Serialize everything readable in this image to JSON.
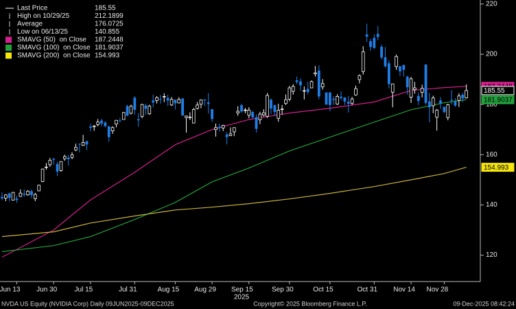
{
  "chart_data": {
    "type": "candlestick",
    "up_color": "#000000",
    "up_stroke": "#ffffff",
    "down_color": "#1f7fe8",
    "x": [
      "Jun 9",
      "Jun 10",
      "Jun 11",
      "Jun 12",
      "Jun 13",
      "Jun 16",
      "Jun 17",
      "Jun 18",
      "Jun 20",
      "Jun 23",
      "Jun 24",
      "Jun 25",
      "Jun 26",
      "Jun 27",
      "Jun 30",
      "Jul 1",
      "Jul 2",
      "Jul 3",
      "Jul 7",
      "Jul 8",
      "Jul 9",
      "Jul 10",
      "Jul 11",
      "Jul 14",
      "Jul 15",
      "Jul 16",
      "Jul 17",
      "Jul 18",
      "Jul 21",
      "Jul 22",
      "Jul 23",
      "Jul 24",
      "Jul 25",
      "Jul 28",
      "Jul 29",
      "Jul 30",
      "Jul 31",
      "Aug 1",
      "Aug 4",
      "Aug 5",
      "Aug 6",
      "Aug 7",
      "Aug 8",
      "Aug 11",
      "Aug 12",
      "Aug 13",
      "Aug 14",
      "Aug 15",
      "Aug 18",
      "Aug 19",
      "Aug 20",
      "Aug 21",
      "Aug 22",
      "Aug 25",
      "Aug 26",
      "Aug 27",
      "Aug 28",
      "Aug 29",
      "Sep 2",
      "Sep 3",
      "Sep 4",
      "Sep 5",
      "Sep 8",
      "Sep 9",
      "Sep 10",
      "Sep 11",
      "Sep 12",
      "Sep 15",
      "Sep 16",
      "Sep 17",
      "Sep 18",
      "Sep 19",
      "Sep 22",
      "Sep 23",
      "Sep 24",
      "Sep 25",
      "Sep 26",
      "Sep 29",
      "Sep 30",
      "Oct 1",
      "Oct 2",
      "Oct 3",
      "Oct 6",
      "Oct 7",
      "Oct 8",
      "Oct 9",
      "Oct 10",
      "Oct 13",
      "Oct 14",
      "Oct 15",
      "Oct 16",
      "Oct 17",
      "Oct 20",
      "Oct 21",
      "Oct 22",
      "Oct 23",
      "Oct 24",
      "Oct 27",
      "Oct 28",
      "Oct 29",
      "Oct 30",
      "Oct 31",
      "Nov 3",
      "Nov 4",
      "Nov 5",
      "Nov 6",
      "Nov 7",
      "Nov 10",
      "Nov 11",
      "Nov 12",
      "Nov 13",
      "Nov 14",
      "Nov 17",
      "Nov 18",
      "Nov 19",
      "Nov 20",
      "Nov 21",
      "Nov 24",
      "Nov 25",
      "Nov 26",
      "Nov 28",
      "Dec 1",
      "Dec 2",
      "Dec 3",
      "Dec 4",
      "Dec 5",
      "Dec 8"
    ],
    "ohlc": [
      [
        143.2,
        145.0,
        141.9,
        142.6
      ],
      [
        142.7,
        144.3,
        141.5,
        144.0
      ],
      [
        144.6,
        144.9,
        141.5,
        142.8
      ],
      [
        141.9,
        145.2,
        141.8,
        145.0
      ],
      [
        142.5,
        143.6,
        140.86,
        142.0
      ],
      [
        143.4,
        146.2,
        143.2,
        144.7
      ],
      [
        144.5,
        146.2,
        143.2,
        144.1
      ],
      [
        144.0,
        145.9,
        143.7,
        145.5
      ],
      [
        145.5,
        146.2,
        142.7,
        143.9
      ],
      [
        142.5,
        144.8,
        141.5,
        144.2
      ],
      [
        145.6,
        148.0,
        145.5,
        147.9
      ],
      [
        149.3,
        154.5,
        149.1,
        154.3
      ],
      [
        155.0,
        156.7,
        154.0,
        155.1
      ],
      [
        156.0,
        158.7,
        155.2,
        157.8
      ],
      [
        158.4,
        158.7,
        156.0,
        158.0
      ],
      [
        156.3,
        157.2,
        151.5,
        153.3
      ],
      [
        153.7,
        157.3,
        153.2,
        157.3
      ],
      [
        158.4,
        160.0,
        157.6,
        159.3
      ],
      [
        158.8,
        159.9,
        155.7,
        158.2
      ],
      [
        158.9,
        161.0,
        158.2,
        160.0
      ],
      [
        161.9,
        164.4,
        161.4,
        162.9
      ],
      [
        164.3,
        164.5,
        160.9,
        164.1
      ],
      [
        163.7,
        167.9,
        163.5,
        164.9
      ],
      [
        165.4,
        165.5,
        161.8,
        164.1
      ],
      [
        171.2,
        172.4,
        169.2,
        170.7
      ],
      [
        171.1,
        171.8,
        169.5,
        171.4
      ],
      [
        172.0,
        174.2,
        171.3,
        173.0
      ],
      [
        173.6,
        174.3,
        171.3,
        172.4
      ],
      [
        172.8,
        173.4,
        170.9,
        171.4
      ],
      [
        171.3,
        171.4,
        165.1,
        167.0
      ],
      [
        169.5,
        171.3,
        168.3,
        170.8
      ],
      [
        172.2,
        173.8,
        170.9,
        173.7
      ],
      [
        173.6,
        174.7,
        172.9,
        173.5
      ],
      [
        174.0,
        177.0,
        173.9,
        176.8
      ],
      [
        179.4,
        179.9,
        175.4,
        175.5
      ],
      [
        176.5,
        179.9,
        176.0,
        179.3
      ],
      [
        182.7,
        183.3,
        175.9,
        177.9
      ],
      [
        174.1,
        176.5,
        171.2,
        173.7
      ],
      [
        175.2,
        180.3,
        174.5,
        180.0
      ],
      [
        179.6,
        180.3,
        175.9,
        178.3
      ],
      [
        176.3,
        179.9,
        175.9,
        179.4
      ],
      [
        181.6,
        183.9,
        178.8,
        180.8
      ],
      [
        181.6,
        183.3,
        180.4,
        182.7
      ],
      [
        182.2,
        183.8,
        180.3,
        182.1
      ],
      [
        183.1,
        184.5,
        180.9,
        183.2
      ],
      [
        182.6,
        183.9,
        179.4,
        181.6
      ],
      [
        179.8,
        183.0,
        179.4,
        182.0
      ],
      [
        181.9,
        181.9,
        178.0,
        180.5
      ],
      [
        180.6,
        182.9,
        180.5,
        182.0
      ],
      [
        182.4,
        182.5,
        175.5,
        175.6
      ],
      [
        174.8,
        175.6,
        168.8,
        175.4
      ],
      [
        174.8,
        176.9,
        173.8,
        175.0
      ],
      [
        172.6,
        178.6,
        172.5,
        178.0
      ],
      [
        178.4,
        181.0,
        178.0,
        179.8
      ],
      [
        180.1,
        182.0,
        178.5,
        181.8
      ],
      [
        181.9,
        182.2,
        179.4,
        181.6
      ],
      [
        180.8,
        184.5,
        176.4,
        180.2
      ],
      [
        178.1,
        178.2,
        173.1,
        174.2
      ],
      [
        170.0,
        172.4,
        167.2,
        170.8
      ],
      [
        171.1,
        172.4,
        169.2,
        170.6
      ],
      [
        170.6,
        171.9,
        169.4,
        171.7
      ],
      [
        168.0,
        169.0,
        164.1,
        167.0
      ],
      [
        167.6,
        170.9,
        167.4,
        168.3
      ],
      [
        169.1,
        170.9,
        167.4,
        170.8
      ],
      [
        176.6,
        179.3,
        175.5,
        177.3
      ],
      [
        179.7,
        180.3,
        176.6,
        177.2
      ],
      [
        177.6,
        178.6,
        176.5,
        177.8
      ],
      [
        175.7,
        178.9,
        174.5,
        177.8
      ],
      [
        177.0,
        177.5,
        174.4,
        174.9
      ],
      [
        174.9,
        176.0,
        168.8,
        170.3
      ],
      [
        173.9,
        177.1,
        172.2,
        176.2
      ],
      [
        175.8,
        178.1,
        175.2,
        176.7
      ],
      [
        175.3,
        184.6,
        174.7,
        183.6
      ],
      [
        181.9,
        182.4,
        176.2,
        178.4
      ],
      [
        179.8,
        179.8,
        175.4,
        177.0
      ],
      [
        174.5,
        180.3,
        173.1,
        177.7
      ],
      [
        178.0,
        179.8,
        175.9,
        178.2
      ],
      [
        180.4,
        184.0,
        179.8,
        181.9
      ],
      [
        182.1,
        187.4,
        181.3,
        186.6
      ],
      [
        185.2,
        188.1,
        183.9,
        187.2
      ],
      [
        189.6,
        191.1,
        188.1,
        188.9
      ],
      [
        189.2,
        190.4,
        185.4,
        187.6
      ],
      [
        185.3,
        187.2,
        182.0,
        185.5
      ],
      [
        186.2,
        189.1,
        184.0,
        185.0
      ],
      [
        186.6,
        189.6,
        186.5,
        189.1
      ],
      [
        192.2,
        195.3,
        191.1,
        192.6
      ],
      [
        193.5,
        195.6,
        182.1,
        183.2
      ],
      [
        187.0,
        190.1,
        185.9,
        188.3
      ],
      [
        184.8,
        184.8,
        179.8,
        180.0
      ],
      [
        184.8,
        184.9,
        177.3,
        179.8
      ],
      [
        182.2,
        183.3,
        179.8,
        181.8
      ],
      [
        180.2,
        184.1,
        179.8,
        183.2
      ],
      [
        183.1,
        185.2,
        181.7,
        182.6
      ],
      [
        182.8,
        182.8,
        179.8,
        181.2
      ],
      [
        181.1,
        183.4,
        176.8,
        180.3
      ],
      [
        180.4,
        183.0,
        179.8,
        182.2
      ],
      [
        183.8,
        187.5,
        183.5,
        186.3
      ],
      [
        189.9,
        192.0,
        188.4,
        191.5
      ],
      [
        193.1,
        203.2,
        191.9,
        201.0
      ],
      [
        207.9,
        212.19,
        204.8,
        207.0
      ],
      [
        205.2,
        206.2,
        201.4,
        202.9
      ],
      [
        206.5,
        207.9,
        202.1,
        202.5
      ],
      [
        208.1,
        211.3,
        205.6,
        206.9
      ],
      [
        203.0,
        203.9,
        197.9,
        198.7
      ],
      [
        198.8,
        202.9,
        194.7,
        195.2
      ],
      [
        196.4,
        197.6,
        186.4,
        188.1
      ],
      [
        184.9,
        188.3,
        178.9,
        188.2
      ],
      [
        195.1,
        199.9,
        193.8,
        199.1
      ],
      [
        195.2,
        195.4,
        191.3,
        193.2
      ],
      [
        195.7,
        195.9,
        191.1,
        193.8
      ],
      [
        191.1,
        191.4,
        183.9,
        186.9
      ],
      [
        182.9,
        191.0,
        180.6,
        190.2
      ],
      [
        185.9,
        189.0,
        184.3,
        186.6
      ],
      [
        183.4,
        184.8,
        179.7,
        181.4
      ],
      [
        184.8,
        187.9,
        182.8,
        186.5
      ],
      [
        195.9,
        196.0,
        179.9,
        180.6
      ],
      [
        181.2,
        184.6,
        172.9,
        178.9
      ],
      [
        179.5,
        183.5,
        176.5,
        182.6
      ],
      [
        174.9,
        178.2,
        169.6,
        177.8
      ],
      [
        181.6,
        182.9,
        178.2,
        180.3
      ],
      [
        179.0,
        179.3,
        176.5,
        177.0
      ],
      [
        174.8,
        180.3,
        173.7,
        179.9
      ],
      [
        181.8,
        185.7,
        180.0,
        181.5
      ],
      [
        181.1,
        182.5,
        179.1,
        179.6
      ],
      [
        181.6,
        184.5,
        179.0,
        183.4
      ],
      [
        183.9,
        184.7,
        180.9,
        182.4
      ],
      [
        182.6,
        188.0,
        182.4,
        185.55
      ]
    ],
    "series": [
      {
        "name": "SMAVG (50)  on Close",
        "color": "#d4208e",
        "x": [
          "Jun 9",
          "Jun 30",
          "Jul 15",
          "Jul 31",
          "Aug 15",
          "Aug 29",
          "Sep 15",
          "Sep 30",
          "Oct 15",
          "Oct 31",
          "Nov 14",
          "Nov 28",
          "Dec 8"
        ],
        "values": [
          119.2,
          130.0,
          142.0,
          153.0,
          164.0,
          170.0,
          174.0,
          176.6,
          178.5,
          181.0,
          185.6,
          186.7,
          187.2448
        ]
      },
      {
        "name": "SMAVG (100)  on Close",
        "color": "#22a03c",
        "x": [
          "Jun 9",
          "Jun 30",
          "Jul 15",
          "Jul 31",
          "Aug 15",
          "Aug 29",
          "Sep 15",
          "Sep 30",
          "Oct 15",
          "Oct 31",
          "Nov 14",
          "Nov 28",
          "Dec 8"
        ],
        "values": [
          121.4,
          123.8,
          127.4,
          134.2,
          141.0,
          149.2,
          154.7,
          161.5,
          167.0,
          173.0,
          177.9,
          180.7,
          181.9037
        ]
      },
      {
        "name": "SMAVG (200)  on Close",
        "color": "#c9b13c",
        "flag_color": "#f5e50d",
        "x": [
          "Jun 9",
          "Jun 30",
          "Jul 15",
          "Jul 31",
          "Aug 15",
          "Aug 29",
          "Sep 15",
          "Sep 30",
          "Oct 15",
          "Oct 31",
          "Nov 14",
          "Nov 28",
          "Dec 8"
        ],
        "values": [
          127.4,
          129.3,
          132.8,
          135.6,
          138.0,
          139.1,
          140.5,
          142.4,
          144.6,
          147.3,
          150.0,
          152.5,
          154.993
        ]
      }
    ],
    "legend_stats": [
      {
        "label": "Last Price",
        "value": 185.55
      },
      {
        "label": "High on 10/29/25",
        "value": 212.1899
      },
      {
        "label": "Average",
        "value": 176.0725
      },
      {
        "label": "Low on 06/13/25",
        "value": 140.855
      }
    ],
    "ylim": [
      109.5,
      221.6
    ],
    "yticks": [
      120,
      140,
      160,
      180,
      200,
      220
    ],
    "grid": false,
    "xticks": [
      "Jun 13",
      "Jun 30",
      "Jul 15",
      "Jul 31",
      "Aug 15",
      "Aug 29",
      "Sep 15",
      "Sep 30",
      "Oct 15",
      "Oct 31",
      "Nov 14",
      "Nov 28"
    ],
    "x_year_label": "2025",
    "footer_left": "NVDA US Equity (NVIDIA Corp) Daily 09JUN2025-09DEC2025",
    "footer_center": "Copyright© 2025 Bloomberg Finance L.P.",
    "footer_right": "09-Dec-2025 08:42:24"
  }
}
